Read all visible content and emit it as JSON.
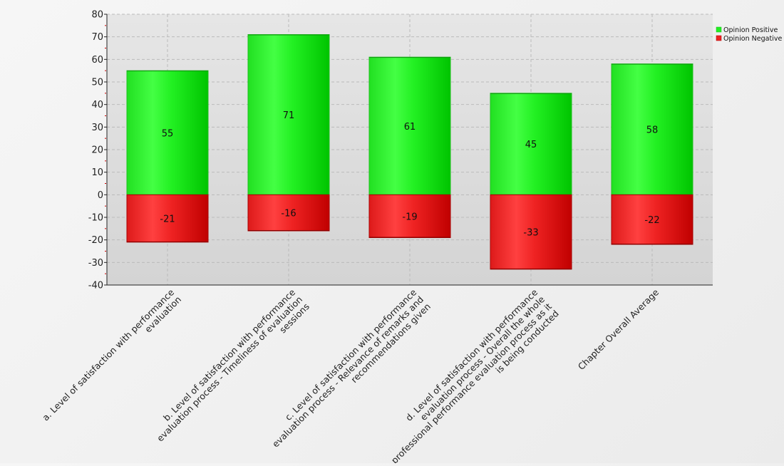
{
  "chart_data": {
    "type": "bar",
    "stacked": true,
    "categories": [
      [
        "a. Level of satisfaction with performance",
        "evaluation"
      ],
      [
        "b. Level of satisfaction with performance",
        "evaluation process - Timeliness of evaluation",
        "sessions"
      ],
      [
        "c. Level of satisfaction with performance",
        "evaluation process - Relevance of remarks and",
        "recommendations given"
      ],
      [
        "d. Level of satisfaction with performance",
        "evaluation process - Overall the whole",
        "professional performance evaluation process as it",
        "is being conducted"
      ],
      [
        "Chapter Overall Average"
      ]
    ],
    "series": [
      {
        "name": "Opinion Positive",
        "values": [
          55,
          71,
          61,
          45,
          58
        ],
        "color": "#22ee22"
      },
      {
        "name": "Opinion Negative",
        "values": [
          -21,
          -16,
          -19,
          -33,
          -22
        ],
        "color": "#ee2222"
      }
    ],
    "ylim": [
      -40,
      80
    ],
    "yticks": [
      -40,
      -30,
      -20,
      -10,
      0,
      10,
      20,
      30,
      40,
      50,
      60,
      70,
      80
    ],
    "grid": true,
    "legend_position": "top-right",
    "colors": {
      "plot_bg": "#dddddd",
      "grid": "#bbbbbb",
      "axis": "#222222",
      "positive": "#22ee22",
      "negative": "#ee2222"
    }
  }
}
